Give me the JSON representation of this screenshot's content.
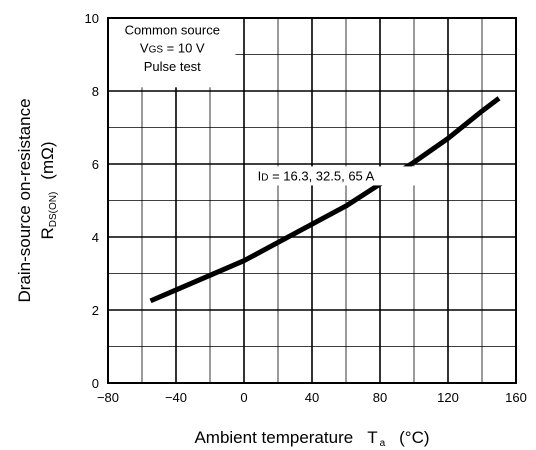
{
  "chart_data": {
    "type": "line",
    "xlim": [
      -80,
      160
    ],
    "ylim": [
      0,
      10
    ],
    "xticks": [
      "−80",
      "−40",
      "0",
      "40",
      "80",
      "120",
      "160"
    ],
    "yticks": [
      "0",
      "2",
      "4",
      "6",
      "8",
      "10"
    ],
    "grid": true,
    "xlabel": {
      "main": "Ambient temperature",
      "symbol": "T",
      "sub": "a",
      "unit": "(°C)"
    },
    "ylabel": {
      "line1": "Drain-source on-resistance",
      "symbol": "R",
      "sub": "DS(ON)",
      "unit": "(mΩ)"
    },
    "conditions": {
      "line1": "Common source",
      "vgs_symbol": "V",
      "vgs_sub": "GS",
      "vgs_value": " = 10 V",
      "line3": "Pulse test"
    },
    "series_label": {
      "symbol": "I",
      "sub": "D",
      "value": " = 16.3, 32.5, 65 A"
    },
    "series": [
      {
        "x": [
          -55,
          -40,
          -20,
          0,
          20,
          40,
          60,
          80,
          100,
          120,
          140,
          150
        ],
        "y": [
          2.25,
          2.55,
          2.95,
          3.35,
          3.85,
          4.35,
          4.85,
          5.45,
          6.05,
          6.7,
          7.45,
          7.8
        ]
      }
    ]
  }
}
